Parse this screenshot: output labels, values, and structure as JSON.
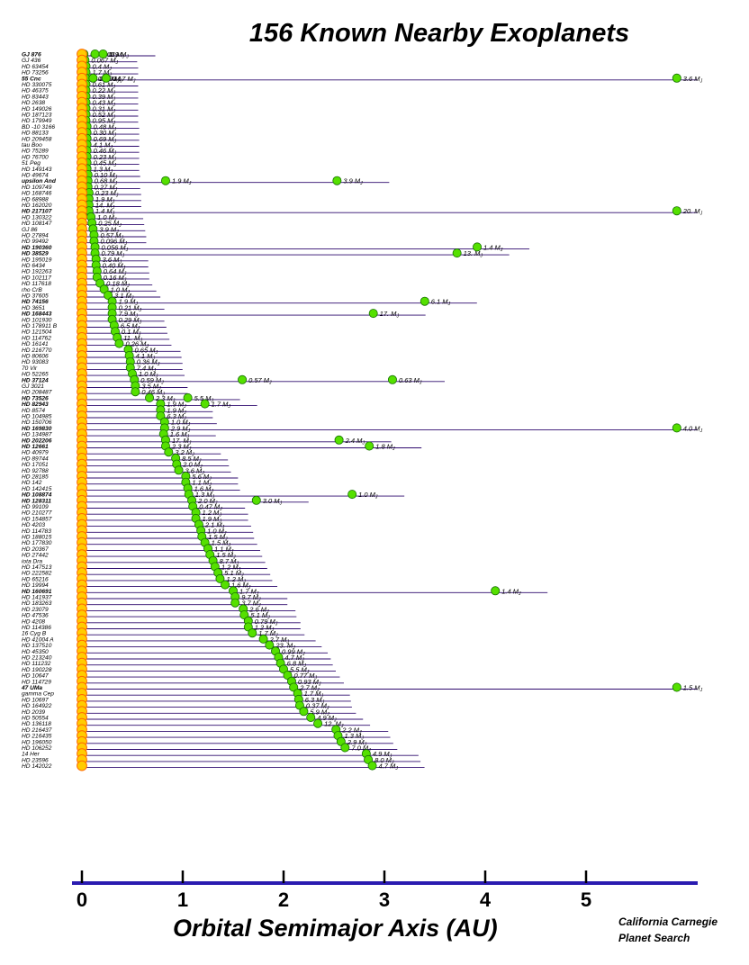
{
  "colors": {
    "axis": "#2a1bb0",
    "row": "#2e0a6e",
    "star": "#ffcc00",
    "star_edge": "#ff6a00",
    "planet": "#55e000",
    "planet_edge": "#157000"
  },
  "chart_data": {
    "type": "scatter",
    "title": "156 Known Nearby Exoplanets",
    "xlabel": "Orbital Semimajor Axis  (AU)",
    "credit": [
      "California Carnegie",
      "Planet Search"
    ],
    "xlim": [
      0,
      6
    ],
    "xticks": [
      "0",
      "1",
      "2",
      "3",
      "4",
      "5"
    ],
    "offscale_note": "arrow marks planets beyond the right edge",
    "rows": [
      {
        "star": "GJ 876",
        "bold": true,
        "planets": [
          [
            0.02,
            "0.018 M"
          ],
          [
            0.13,
            "0.60 M"
          ],
          [
            0.21,
            "1.9 M"
          ]
        ]
      },
      {
        "star": "GJ 436",
        "planets": [
          [
            0.03,
            "0.067 M"
          ]
        ]
      },
      {
        "star": "HD 63454",
        "planets": [
          [
            0.04,
            "0.4 M"
          ]
        ]
      },
      {
        "star": "HD 73256",
        "planets": [
          [
            0.04,
            "1.7 M"
          ]
        ]
      },
      {
        "star": "55 Cnc",
        "bold": true,
        "planets": [
          [
            0.04,
            "0.037 M"
          ],
          [
            0.11,
            "0.99 M"
          ],
          [
            0.24,
            "0.17 M"
          ],
          [
            5.9,
            "3.6 M"
          ]
        ]
      },
      {
        "star": "HD 330075",
        "planets": [
          [
            0.04,
            "0.61 M"
          ]
        ]
      },
      {
        "star": "HD 46375",
        "planets": [
          [
            0.04,
            "0.22 M"
          ]
        ]
      },
      {
        "star": "HD 83443",
        "planets": [
          [
            0.04,
            "0.39 M"
          ]
        ]
      },
      {
        "star": "HD 2638",
        "planets": [
          [
            0.04,
            "0.43 M"
          ]
        ]
      },
      {
        "star": "HD 149026",
        "planets": [
          [
            0.04,
            "0.31 M"
          ]
        ]
      },
      {
        "star": "HD 187123",
        "planets": [
          [
            0.04,
            "0.52 M"
          ]
        ]
      },
      {
        "star": "HD 179949",
        "planets": [
          [
            0.04,
            "0.95 M"
          ]
        ]
      },
      {
        "star": "BD -10 3166",
        "planets": [
          [
            0.05,
            "0.48 M"
          ]
        ]
      },
      {
        "star": "HD 88133",
        "planets": [
          [
            0.05,
            "0.30 M"
          ]
        ]
      },
      {
        "star": "HD 209458",
        "planets": [
          [
            0.05,
            "0.69 M"
          ]
        ]
      },
      {
        "star": "tau Boo",
        "planets": [
          [
            0.05,
            "4.1 M"
          ]
        ]
      },
      {
        "star": "HD 75289",
        "planets": [
          [
            0.05,
            "0.46 M"
          ]
        ]
      },
      {
        "star": "HD 76700",
        "planets": [
          [
            0.05,
            "0.23 M"
          ]
        ]
      },
      {
        "star": "51 Peg",
        "planets": [
          [
            0.05,
            "0.45 M"
          ]
        ]
      },
      {
        "star": "HD 149143",
        "planets": [
          [
            0.05,
            "1.3 M"
          ]
        ]
      },
      {
        "star": "HD 49674",
        "planets": [
          [
            0.06,
            "0.10 M"
          ]
        ]
      },
      {
        "star": "upsilon And",
        "bold": true,
        "planets": [
          [
            0.06,
            "0.68 M"
          ],
          [
            0.83,
            "1.9 M"
          ],
          [
            2.53,
            "3.9 M"
          ]
        ]
      },
      {
        "star": "HD 109749",
        "planets": [
          [
            0.06,
            "0.27 M"
          ]
        ]
      },
      {
        "star": "HD 168746",
        "planets": [
          [
            0.07,
            "0.23 M"
          ]
        ]
      },
      {
        "star": "HD 68988",
        "planets": [
          [
            0.07,
            "1.9 M"
          ]
        ]
      },
      {
        "star": "HD 162020",
        "planets": [
          [
            0.07,
            "14. M"
          ]
        ]
      },
      {
        "star": "HD 217107",
        "bold": true,
        "planets": [
          [
            0.07,
            "1.4 M"
          ],
          [
            5.9,
            "20. M"
          ]
        ]
      },
      {
        "star": "HD 130322",
        "planets": [
          [
            0.09,
            "1.0 M"
          ]
        ]
      },
      {
        "star": "HD 108147",
        "planets": [
          [
            0.1,
            "0.25 M"
          ]
        ]
      },
      {
        "star": "GJ 86",
        "planets": [
          [
            0.11,
            "3.9 M"
          ]
        ]
      },
      {
        "star": "HD 27894",
        "planets": [
          [
            0.12,
            "0.57 M"
          ]
        ]
      },
      {
        "star": "HD 99492",
        "planets": [
          [
            0.12,
            "0.096 M"
          ]
        ]
      },
      {
        "star": "HD 190360",
        "bold": true,
        "planets": [
          [
            0.13,
            "0.056 M"
          ],
          [
            3.92,
            "1.4 M"
          ]
        ]
      },
      {
        "star": "HD 38529",
        "bold": true,
        "planets": [
          [
            0.13,
            "0.79 M"
          ],
          [
            3.72,
            "13. M"
          ]
        ]
      },
      {
        "star": "HD 195019",
        "planets": [
          [
            0.14,
            "3.6 M"
          ]
        ]
      },
      {
        "star": "HD 6434",
        "planets": [
          [
            0.14,
            "0.40 M"
          ]
        ]
      },
      {
        "star": "HD 192263",
        "planets": [
          [
            0.15,
            "0.64 M"
          ]
        ]
      },
      {
        "star": "HD 102117",
        "planets": [
          [
            0.15,
            "0.16 M"
          ]
        ]
      },
      {
        "star": "HD 117618",
        "planets": [
          [
            0.18,
            "0.18 M"
          ]
        ]
      },
      {
        "star": "rho CrB",
        "planets": [
          [
            0.22,
            "1.0 M"
          ]
        ]
      },
      {
        "star": "HD 37605",
        "planets": [
          [
            0.26,
            "3.1 M"
          ]
        ]
      },
      {
        "star": "HD 74156",
        "bold": true,
        "planets": [
          [
            0.3,
            "1.9 M"
          ],
          [
            3.4,
            "6.1 M"
          ]
        ]
      },
      {
        "star": "HD 3651",
        "planets": [
          [
            0.3,
            "0.21 M"
          ]
        ]
      },
      {
        "star": "HD 168443",
        "bold": true,
        "planets": [
          [
            0.3,
            "7.9 M"
          ],
          [
            2.89,
            "17. M"
          ]
        ]
      },
      {
        "star": "HD 101930",
        "planets": [
          [
            0.3,
            "0.29 M"
          ]
        ]
      },
      {
        "star": "HD 178911 B",
        "planets": [
          [
            0.32,
            "6.5 M"
          ]
        ]
      },
      {
        "star": "HD 121504",
        "planets": [
          [
            0.33,
            "0.1 M"
          ]
        ]
      },
      {
        "star": "HD 114762",
        "planets": [
          [
            0.35,
            "11. M"
          ]
        ]
      },
      {
        "star": "HD 16141",
        "planets": [
          [
            0.37,
            "0.26 M"
          ]
        ]
      },
      {
        "star": "HD 216770",
        "planets": [
          [
            0.46,
            "0.65 M"
          ]
        ]
      },
      {
        "star": "HD 80606",
        "planets": [
          [
            0.47,
            "4.1 M"
          ]
        ]
      },
      {
        "star": "HD 93083",
        "planets": [
          [
            0.48,
            "0.36 M"
          ]
        ]
      },
      {
        "star": "70 Vir",
        "planets": [
          [
            0.48,
            "7.4 M"
          ]
        ]
      },
      {
        "star": "HD 52265",
        "planets": [
          [
            0.5,
            "1.0 M"
          ]
        ]
      },
      {
        "star": "HD 37124",
        "bold": true,
        "planets": [
          [
            0.52,
            "0.59 M"
          ],
          [
            1.59,
            "0.57 M"
          ],
          [
            3.08,
            "0.63 M"
          ]
        ]
      },
      {
        "star": "GJ 3021",
        "planets": [
          [
            0.53,
            "3.5 M"
          ]
        ]
      },
      {
        "star": "HD 208487",
        "planets": [
          [
            0.53,
            "0.46 M"
          ]
        ]
      },
      {
        "star": "HD 73526",
        "bold": true,
        "planets": [
          [
            0.67,
            "2.3 M"
          ],
          [
            1.05,
            "5.5 M"
          ]
        ]
      },
      {
        "star": "HD 82943",
        "bold": true,
        "planets": [
          [
            0.78,
            "1.9 M"
          ],
          [
            1.22,
            "1.7 M"
          ]
        ]
      },
      {
        "star": "HD 8574",
        "planets": [
          [
            0.78,
            "1.9 M"
          ]
        ]
      },
      {
        "star": "HD 104985",
        "planets": [
          [
            0.78,
            "6.3 M"
          ]
        ]
      },
      {
        "star": "HD 150706",
        "planets": [
          [
            0.82,
            "1.0 M"
          ]
        ]
      },
      {
        "star": "HD 169830",
        "bold": true,
        "planets": [
          [
            0.82,
            "2.9 M"
          ],
          [
            5.9,
            "4.0 M"
          ]
        ]
      },
      {
        "star": "HD 134987",
        "planets": [
          [
            0.81,
            "1.6 M"
          ]
        ]
      },
      {
        "star": "HD 202206",
        "bold": true,
        "planets": [
          [
            0.83,
            "17. M"
          ],
          [
            2.55,
            "2.4 M"
          ]
        ]
      },
      {
        "star": "HD 12661",
        "bold": true,
        "planets": [
          [
            0.83,
            "2.3 M"
          ],
          [
            2.85,
            "1.8 M"
          ]
        ]
      },
      {
        "star": "HD 40979",
        "planets": [
          [
            0.86,
            "3.2 M"
          ]
        ]
      },
      {
        "star": "HD 89744",
        "planets": [
          [
            0.93,
            "8.5 M"
          ]
        ]
      },
      {
        "star": "HD 17051",
        "planets": [
          [
            0.94,
            "2.0 M"
          ]
        ]
      },
      {
        "star": "HD 92788",
        "planets": [
          [
            0.96,
            "3.6 M"
          ]
        ]
      },
      {
        "star": "HD 28185",
        "planets": [
          [
            1.03,
            "5.6 M"
          ]
        ]
      },
      {
        "star": "HD 142",
        "planets": [
          [
            1.03,
            "1.1 M"
          ]
        ]
      },
      {
        "star": "HD 142415",
        "planets": [
          [
            1.05,
            "1.6 M"
          ]
        ]
      },
      {
        "star": "HD 108874",
        "bold": true,
        "planets": [
          [
            1.06,
            "1.3 M"
          ],
          [
            2.68,
            "1.0 M"
          ]
        ]
      },
      {
        "star": "HD 128311",
        "bold": true,
        "planets": [
          [
            1.09,
            "2.0 M"
          ],
          [
            1.73,
            "3.0 M"
          ]
        ]
      },
      {
        "star": "HD 99109",
        "planets": [
          [
            1.1,
            "0.47 M"
          ]
        ]
      },
      {
        "star": "HD 210277",
        "planets": [
          [
            1.13,
            "1.2 M"
          ]
        ]
      },
      {
        "star": "HD 154857",
        "planets": [
          [
            1.13,
            "1.9 M"
          ]
        ]
      },
      {
        "star": "HD 4203",
        "planets": [
          [
            1.16,
            "2.1 M"
          ]
        ]
      },
      {
        "star": "HD 114783",
        "planets": [
          [
            1.18,
            "1.0 M"
          ]
        ]
      },
      {
        "star": "HD 188015",
        "planets": [
          [
            1.19,
            "1.5 M"
          ]
        ]
      },
      {
        "star": "HD 177830",
        "planets": [
          [
            1.22,
            "1.5 M"
          ]
        ]
      },
      {
        "star": "HD 20367",
        "planets": [
          [
            1.25,
            "1.1 M"
          ]
        ]
      },
      {
        "star": "HD 27442",
        "planets": [
          [
            1.27,
            "1.5 M"
          ]
        ]
      },
      {
        "star": "iota Dra",
        "planets": [
          [
            1.3,
            "8.7 M"
          ]
        ]
      },
      {
        "star": "HD 147513",
        "planets": [
          [
            1.32,
            "1.2 M"
          ]
        ]
      },
      {
        "star": "HD 222582",
        "planets": [
          [
            1.35,
            "5.1 M"
          ]
        ]
      },
      {
        "star": "HD 65216",
        "planets": [
          [
            1.37,
            "1.2 M"
          ]
        ]
      },
      {
        "star": "HD 19994",
        "planets": [
          [
            1.42,
            "1.6 M"
          ]
        ]
      },
      {
        "star": "HD 160691",
        "bold": true,
        "planets": [
          [
            1.5,
            "1.7 M"
          ],
          [
            4.1,
            "1.4 M"
          ]
        ]
      },
      {
        "star": "HD 141937",
        "planets": [
          [
            1.52,
            "9.7 M"
          ]
        ]
      },
      {
        "star": "HD 183263",
        "planets": [
          [
            1.52,
            "3.7 M"
          ]
        ]
      },
      {
        "star": "HD 23079",
        "planets": [
          [
            1.6,
            "2.6 M"
          ]
        ]
      },
      {
        "star": "HD 47536",
        "planets": [
          [
            1.61,
            "5.1 M"
          ]
        ]
      },
      {
        "star": "HD 4208",
        "planets": [
          [
            1.65,
            "0.79 M"
          ]
        ]
      },
      {
        "star": "HD 114386",
        "planets": [
          [
            1.65,
            "1.2 M"
          ]
        ]
      },
      {
        "star": "16 Cyg B",
        "planets": [
          [
            1.69,
            "1.7 M"
          ]
        ]
      },
      {
        "star": "HD 41004 A",
        "planets": [
          [
            1.8,
            "2.7 M"
          ]
        ]
      },
      {
        "star": "HD 137510",
        "planets": [
          [
            1.86,
            "23. M"
          ]
        ]
      },
      {
        "star": "HD 45350",
        "planets": [
          [
            1.92,
            "0.99 M"
          ]
        ]
      },
      {
        "star": "HD 213240",
        "planets": [
          [
            1.95,
            "4.7 M"
          ]
        ]
      },
      {
        "star": "HD 111232",
        "planets": [
          [
            1.97,
            "6.8 M"
          ]
        ]
      },
      {
        "star": "HD 190228",
        "planets": [
          [
            2.0,
            "5.5 M"
          ]
        ]
      },
      {
        "star": "HD 10647",
        "planets": [
          [
            2.04,
            "0.77 M"
          ]
        ]
      },
      {
        "star": "HD 114729",
        "planets": [
          [
            2.08,
            "0.93 M"
          ]
        ]
      },
      {
        "star": "47 UMa",
        "bold": true,
        "planets": [
          [
            2.1,
            "2.7 M"
          ],
          [
            5.9,
            "1.5 M"
          ]
        ]
      },
      {
        "star": "gamma Cep",
        "planets": [
          [
            2.14,
            "1.7 M"
          ]
        ]
      },
      {
        "star": "HD 10697",
        "planets": [
          [
            2.15,
            "6.3 M"
          ]
        ]
      },
      {
        "star": "HD 164922",
        "planets": [
          [
            2.16,
            "0.37 M"
          ]
        ]
      },
      {
        "star": "HD 2039",
        "planets": [
          [
            2.2,
            "5.9 M"
          ]
        ]
      },
      {
        "star": "HD 50554",
        "planets": [
          [
            2.27,
            "4.9 M"
          ]
        ]
      },
      {
        "star": "HD 136118",
        "planets": [
          [
            2.34,
            "12. M"
          ]
        ]
      },
      {
        "star": "HD 216437",
        "planets": [
          [
            2.52,
            "2.2 M"
          ]
        ]
      },
      {
        "star": "HD 216435",
        "planets": [
          [
            2.54,
            "1.3 M"
          ]
        ]
      },
      {
        "star": "HD 196050",
        "planets": [
          [
            2.57,
            "2.9 M"
          ]
        ]
      },
      {
        "star": "HD 106252",
        "planets": [
          [
            2.61,
            "7.0 M"
          ]
        ]
      },
      {
        "star": "14 Her",
        "planets": [
          [
            2.82,
            "4.9 M"
          ]
        ]
      },
      {
        "star": "HD 23596",
        "planets": [
          [
            2.84,
            "8.0 M"
          ]
        ]
      },
      {
        "star": "HD 142022",
        "planets": [
          [
            2.88,
            "4.7 M"
          ]
        ]
      }
    ]
  }
}
